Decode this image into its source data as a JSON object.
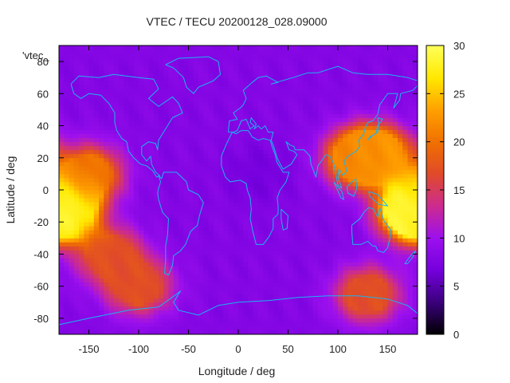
{
  "chart_data": {
    "type": "heatmap",
    "title": "VTEC / TECU 20200128_028.09000",
    "xlabel": "Longitude / deg",
    "ylabel": "Latitude / deg",
    "key_label": "'vtec_",
    "xlim": [
      -180,
      180
    ],
    "ylim": [
      -90,
      90
    ],
    "x_ticks": [
      -150,
      -100,
      -50,
      0,
      50,
      100,
      150
    ],
    "y_ticks": [
      -80,
      -60,
      -40,
      -20,
      0,
      20,
      40,
      60,
      80
    ],
    "colorbar": {
      "range": [
        0,
        30
      ],
      "ticks": [
        0,
        5,
        10,
        15,
        20,
        25,
        30
      ]
    },
    "colormap": [
      "#000000",
      "#3a007a",
      "#7400dd",
      "#9d10ee",
      "#cc2b90",
      "#e04a2a",
      "#f07000",
      "#ffa000",
      "#ffe800",
      "#ffff5a"
    ],
    "coastline_color": "#19b4f0",
    "grid": false,
    "field_features": [
      {
        "lon": -180,
        "lat": -12,
        "value": 29
      },
      {
        "lon": 180,
        "lat": -12,
        "value": 28
      },
      {
        "lon": 140,
        "lat": 22,
        "value": 23
      },
      {
        "lon": 120,
        "lat": 20,
        "value": 21
      },
      {
        "lon": -150,
        "lat": 10,
        "value": 20
      },
      {
        "lon": -130,
        "lat": -40,
        "value": 17
      },
      {
        "lon": -100,
        "lat": -60,
        "value": 17
      },
      {
        "lon": 130,
        "lat": -65,
        "value": 17
      },
      {
        "lon": 20,
        "lat": 10,
        "value": 7
      },
      {
        "lon": 30,
        "lat": 60,
        "value": 8
      }
    ]
  }
}
